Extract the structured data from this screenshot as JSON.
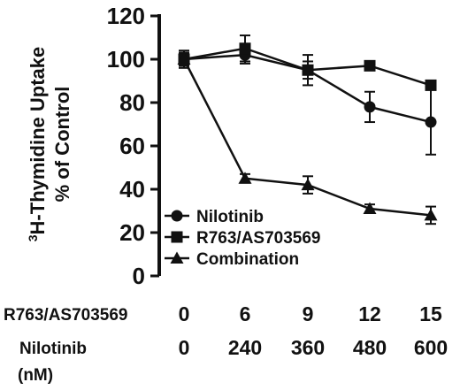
{
  "chart_data": {
    "type": "line",
    "ylabel_line1_sup": "3",
    "ylabel_line1_text": "H-Thymidine Uptake",
    "ylabel_line2": "% of Control",
    "ylim": [
      0,
      120
    ],
    "yticks": [
      "0",
      "20",
      "40",
      "60",
      "80",
      "100",
      "120"
    ],
    "categories": [
      "0",
      "6",
      "9",
      "12",
      "15"
    ],
    "x_rows": [
      {
        "label": "R763/AS703569",
        "values": [
          "0",
          "6",
          "9",
          "12",
          "15"
        ]
      },
      {
        "label": "Nilotinib",
        "values": [
          "0",
          "240",
          "360",
          "480",
          "600"
        ]
      }
    ],
    "x_unit": "(nM)",
    "series": [
      {
        "name": "Nilotinib",
        "marker": "circle",
        "values": [
          100,
          102,
          95,
          78,
          71
        ],
        "errors": [
          4,
          4,
          7,
          7,
          15
        ]
      },
      {
        "name": "R763/AS703569",
        "marker": "square",
        "values": [
          100,
          105,
          95,
          97,
          88
        ],
        "errors": [
          3,
          6,
          4,
          2,
          2
        ]
      },
      {
        "name": "Combination",
        "marker": "triangle",
        "values": [
          100,
          45,
          42,
          31,
          28
        ],
        "errors": [
          3,
          2,
          4,
          2,
          4
        ]
      }
    ],
    "legend_position": "lower-left",
    "grid": false,
    "color": "#111111"
  }
}
